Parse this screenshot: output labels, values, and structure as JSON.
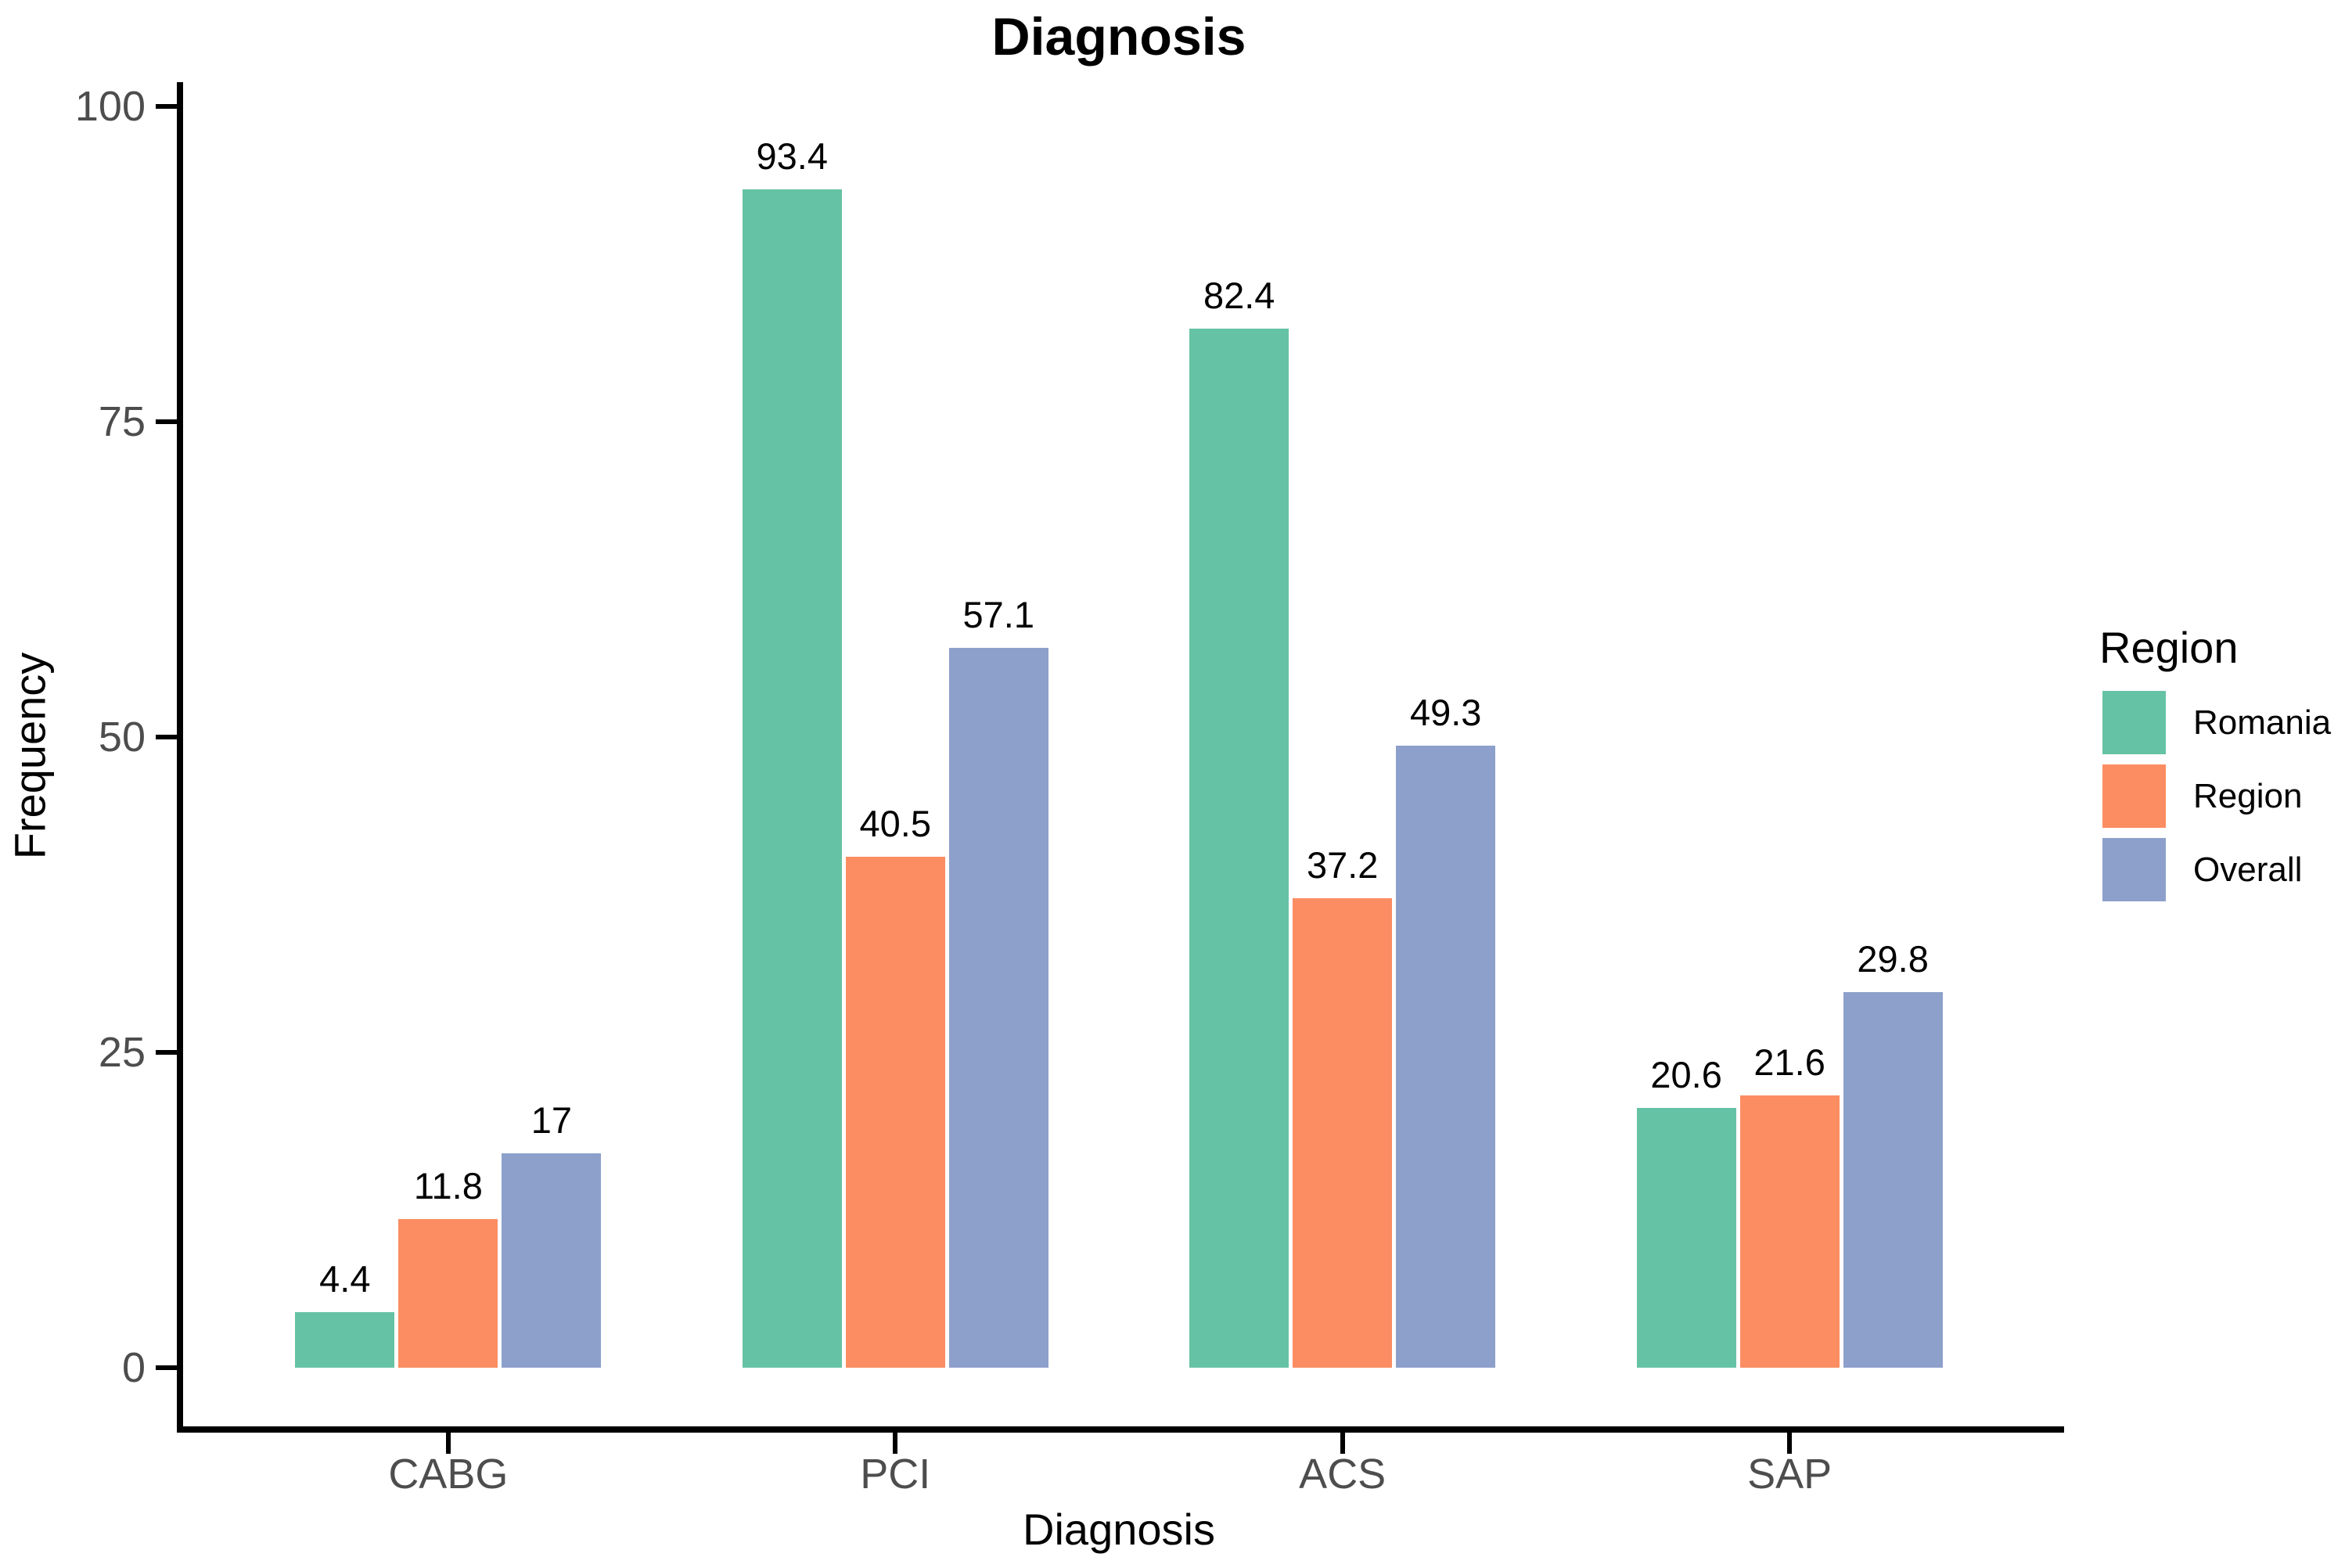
{
  "title": "Diagnosis",
  "chart_data": {
    "type": "bar",
    "title": "Diagnosis",
    "xlabel": "Diagnosis",
    "ylabel": "Frequency",
    "categories": [
      "CABG",
      "PCI",
      "ACS",
      "SAP"
    ],
    "series": [
      {
        "name": "Romania",
        "color": "#66C2A5",
        "values": [
          4.4,
          93.4,
          82.4,
          20.6
        ],
        "labels": [
          "4.4",
          "93.4",
          "82.4",
          "20.6"
        ]
      },
      {
        "name": "Region",
        "color": "#FC8D62",
        "values": [
          11.8,
          40.5,
          37.2,
          21.6
        ],
        "labels": [
          "11.8",
          "40.5",
          "37.2",
          "21.6"
        ]
      },
      {
        "name": "Overall",
        "color": "#8DA0CB",
        "values": [
          17,
          57.1,
          49.3,
          29.8
        ],
        "labels": [
          "17",
          "57.1",
          "49.3",
          "29.8"
        ]
      }
    ],
    "ylim": [
      0,
      100
    ],
    "yticks": [
      0,
      25,
      50,
      75,
      100
    ],
    "legend_title": "Region",
    "legend_position": "right",
    "grid": false,
    "axis_text_color": "#4d4d4d",
    "axis_line_color": "#000000"
  }
}
